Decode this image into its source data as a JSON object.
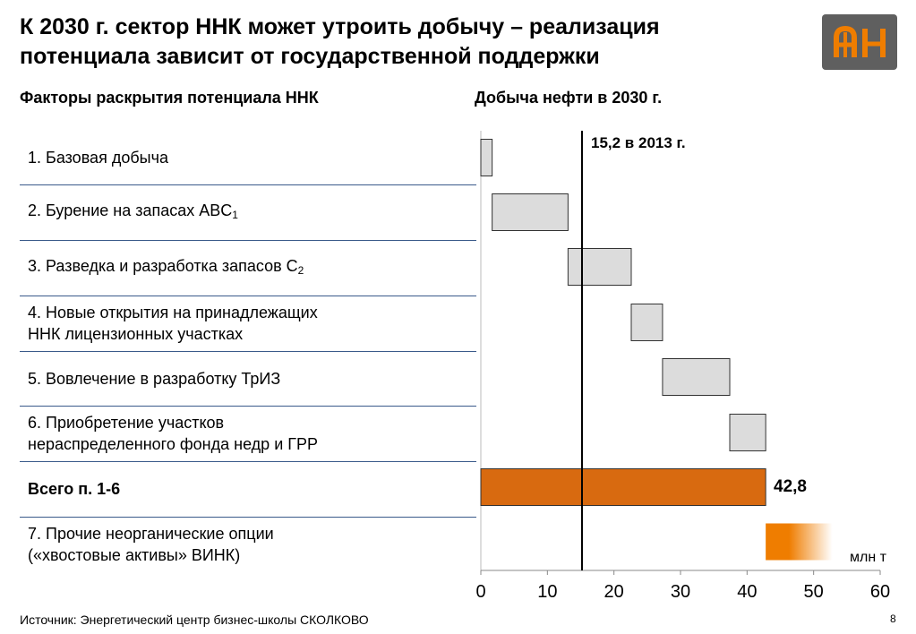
{
  "title": "К 2030 г. сектор ННК может утроить добычу – реализация\nпотенциала зависит от государственной поддержки",
  "left_heading": "Факторы раскрытия потенциала ННК",
  "right_heading": "Добыча нефти в 2030 г.",
  "rows": [
    {
      "label": "1. Базовая добыча"
    },
    {
      "label": "2. Бурение на запасах ABC",
      "sub": "1"
    },
    {
      "label": "3. Разведка и разработка запасов C",
      "sub": "2"
    },
    {
      "label": "4. Новые открытия на принадлежащих\nННК лицензионных участках"
    },
    {
      "label": "5. Вовлечение в разработку ТрИЗ"
    },
    {
      "label": "6. Приобретение участков\nнераспределенного фонда недр и ГРР"
    },
    {
      "label": "Всего п. 1-6",
      "bold": true
    },
    {
      "label": "7. Прочие неорганические опции\n(«хвостовые активы» ВИНК)"
    }
  ],
  "chart_data": {
    "type": "bar",
    "subtype": "waterfall",
    "title": "Добыча нефти в 2030 г.",
    "unit": "млн т",
    "xlim": [
      0,
      60
    ],
    "ticks": [
      "0",
      "10",
      "20",
      "30",
      "40",
      "50",
      "60"
    ],
    "tick_values": [
      0,
      10,
      20,
      30,
      40,
      50,
      60
    ],
    "segments": [
      {
        "start": 0,
        "end": 1.7,
        "style": "gray"
      },
      {
        "start": 1.7,
        "end": 13.1,
        "style": "gray"
      },
      {
        "start": 13.1,
        "end": 22.6,
        "style": "gray"
      },
      {
        "start": 22.6,
        "end": 27.3,
        "style": "gray"
      },
      {
        "start": 27.3,
        "end": 37.4,
        "style": "gray"
      },
      {
        "start": 37.4,
        "end": 42.8,
        "style": "gray"
      },
      {
        "start": 0,
        "end": 42.8,
        "style": "orange"
      },
      {
        "start": 42.8,
        "end": 52.8,
        "style": "gradient"
      }
    ],
    "reference_value": 15.2,
    "reference_label": "15,2 в 2013 г.",
    "total_label": "42,8",
    "colors": {
      "gray": "#dcdcdc",
      "orange": "#d86a10",
      "gradient_start": "#ef7d00"
    }
  },
  "source": "Источник: Энергетический центр бизнес-школы СКОЛКОВО",
  "page_number": "8"
}
